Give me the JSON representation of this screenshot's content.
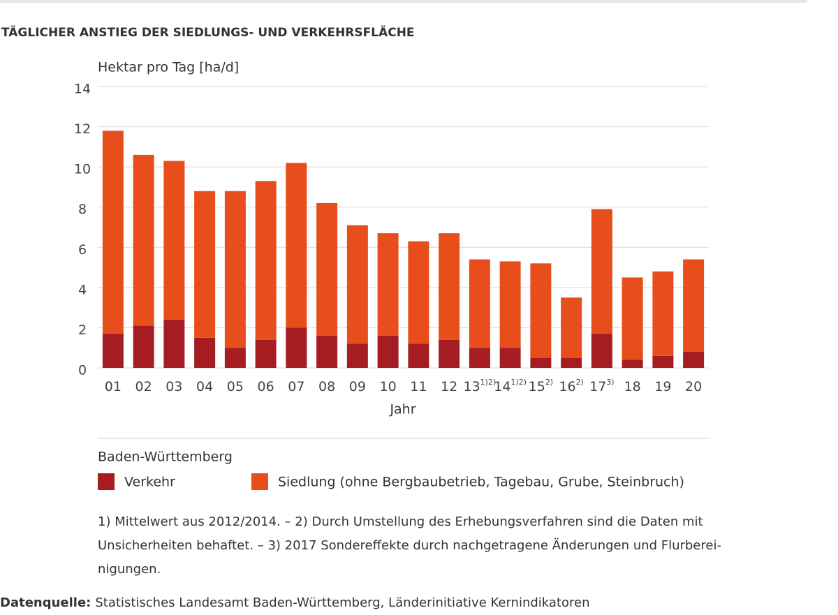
{
  "chart_data": {
    "type": "stacked-bar",
    "title": "TÄGLICHER ANSTIEG DER SIEDLUNGS- UND VERKEHRSFLÄCHE",
    "y_label": "Hektar pro Tag [ha/d]",
    "x_label": "Jahr",
    "categories": [
      "01",
      "02",
      "03",
      "04",
      "05",
      "06",
      "07",
      "08",
      "09",
      "10",
      "11",
      "12",
      "13",
      "14",
      "15",
      "16",
      "17",
      "18",
      "19",
      "20"
    ],
    "category_notes": [
      null,
      null,
      null,
      null,
      null,
      null,
      null,
      null,
      null,
      null,
      null,
      null,
      "1)2)",
      "1)2)",
      "2)",
      "2)",
      "3)",
      null,
      null,
      null
    ],
    "series": [
      {
        "name": "Verkehr",
        "color": "#a51d23",
        "values": [
          1.7,
          2.1,
          2.4,
          1.5,
          1.0,
          1.4,
          2.0,
          1.6,
          1.2,
          1.6,
          1.2,
          1.4,
          1.0,
          1.0,
          0.5,
          0.5,
          1.7,
          0.4,
          0.6,
          0.8
        ]
      },
      {
        "name": "Siedlung (ohne Bergbaubetrieb, Tagebau, Grube, Steinbruch)",
        "color": "#e84e1b",
        "values": [
          10.1,
          8.5,
          7.9,
          7.3,
          7.8,
          7.9,
          8.2,
          6.6,
          5.9,
          5.1,
          5.1,
          5.3,
          4.4,
          4.3,
          4.7,
          3.0,
          6.2,
          4.1,
          4.2,
          4.6
        ]
      }
    ],
    "ylim": [
      0,
      14
    ],
    "yticks": [
      0,
      2,
      4,
      6,
      8,
      10,
      12,
      14
    ],
    "grid": true,
    "legend_title": "Baden-Württemberg",
    "footnotes": [
      "1) Mittelwert aus 2012/2014. – 2) Durch Umstellung des Erhebungsverfahren sind die Daten mit",
      "Unsicherheiten behaftet.  – 3) 2017 Sondereffekte durch nachgetragene Änderungen und Flurberei-",
      "nigungen."
    ],
    "source_label": "Datenquelle:",
    "source": "Statistisches Landesamt Baden-Württemberg, Länderinitiative Kernindikatoren"
  }
}
